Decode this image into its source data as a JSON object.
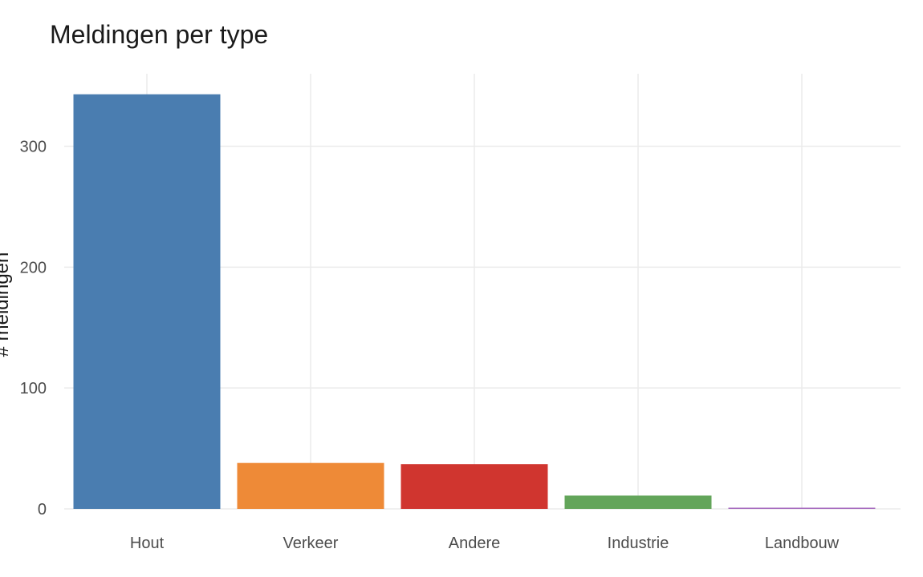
{
  "chart_data": {
    "type": "bar",
    "title": "Meldingen per type",
    "xlabel": "",
    "ylabel": "# meldingen",
    "categories": [
      "Hout",
      "Verkeer",
      "Andere",
      "Industrie",
      "Landbouw"
    ],
    "values": [
      343,
      38,
      37,
      11,
      1
    ],
    "colors": [
      "#4a7db0",
      "#ee8a37",
      "#d0352f",
      "#63a55a",
      "#a66bbf"
    ],
    "yticks": [
      0,
      100,
      200,
      300
    ],
    "ylim": [
      0,
      360
    ],
    "grid": true,
    "legend": "none"
  }
}
